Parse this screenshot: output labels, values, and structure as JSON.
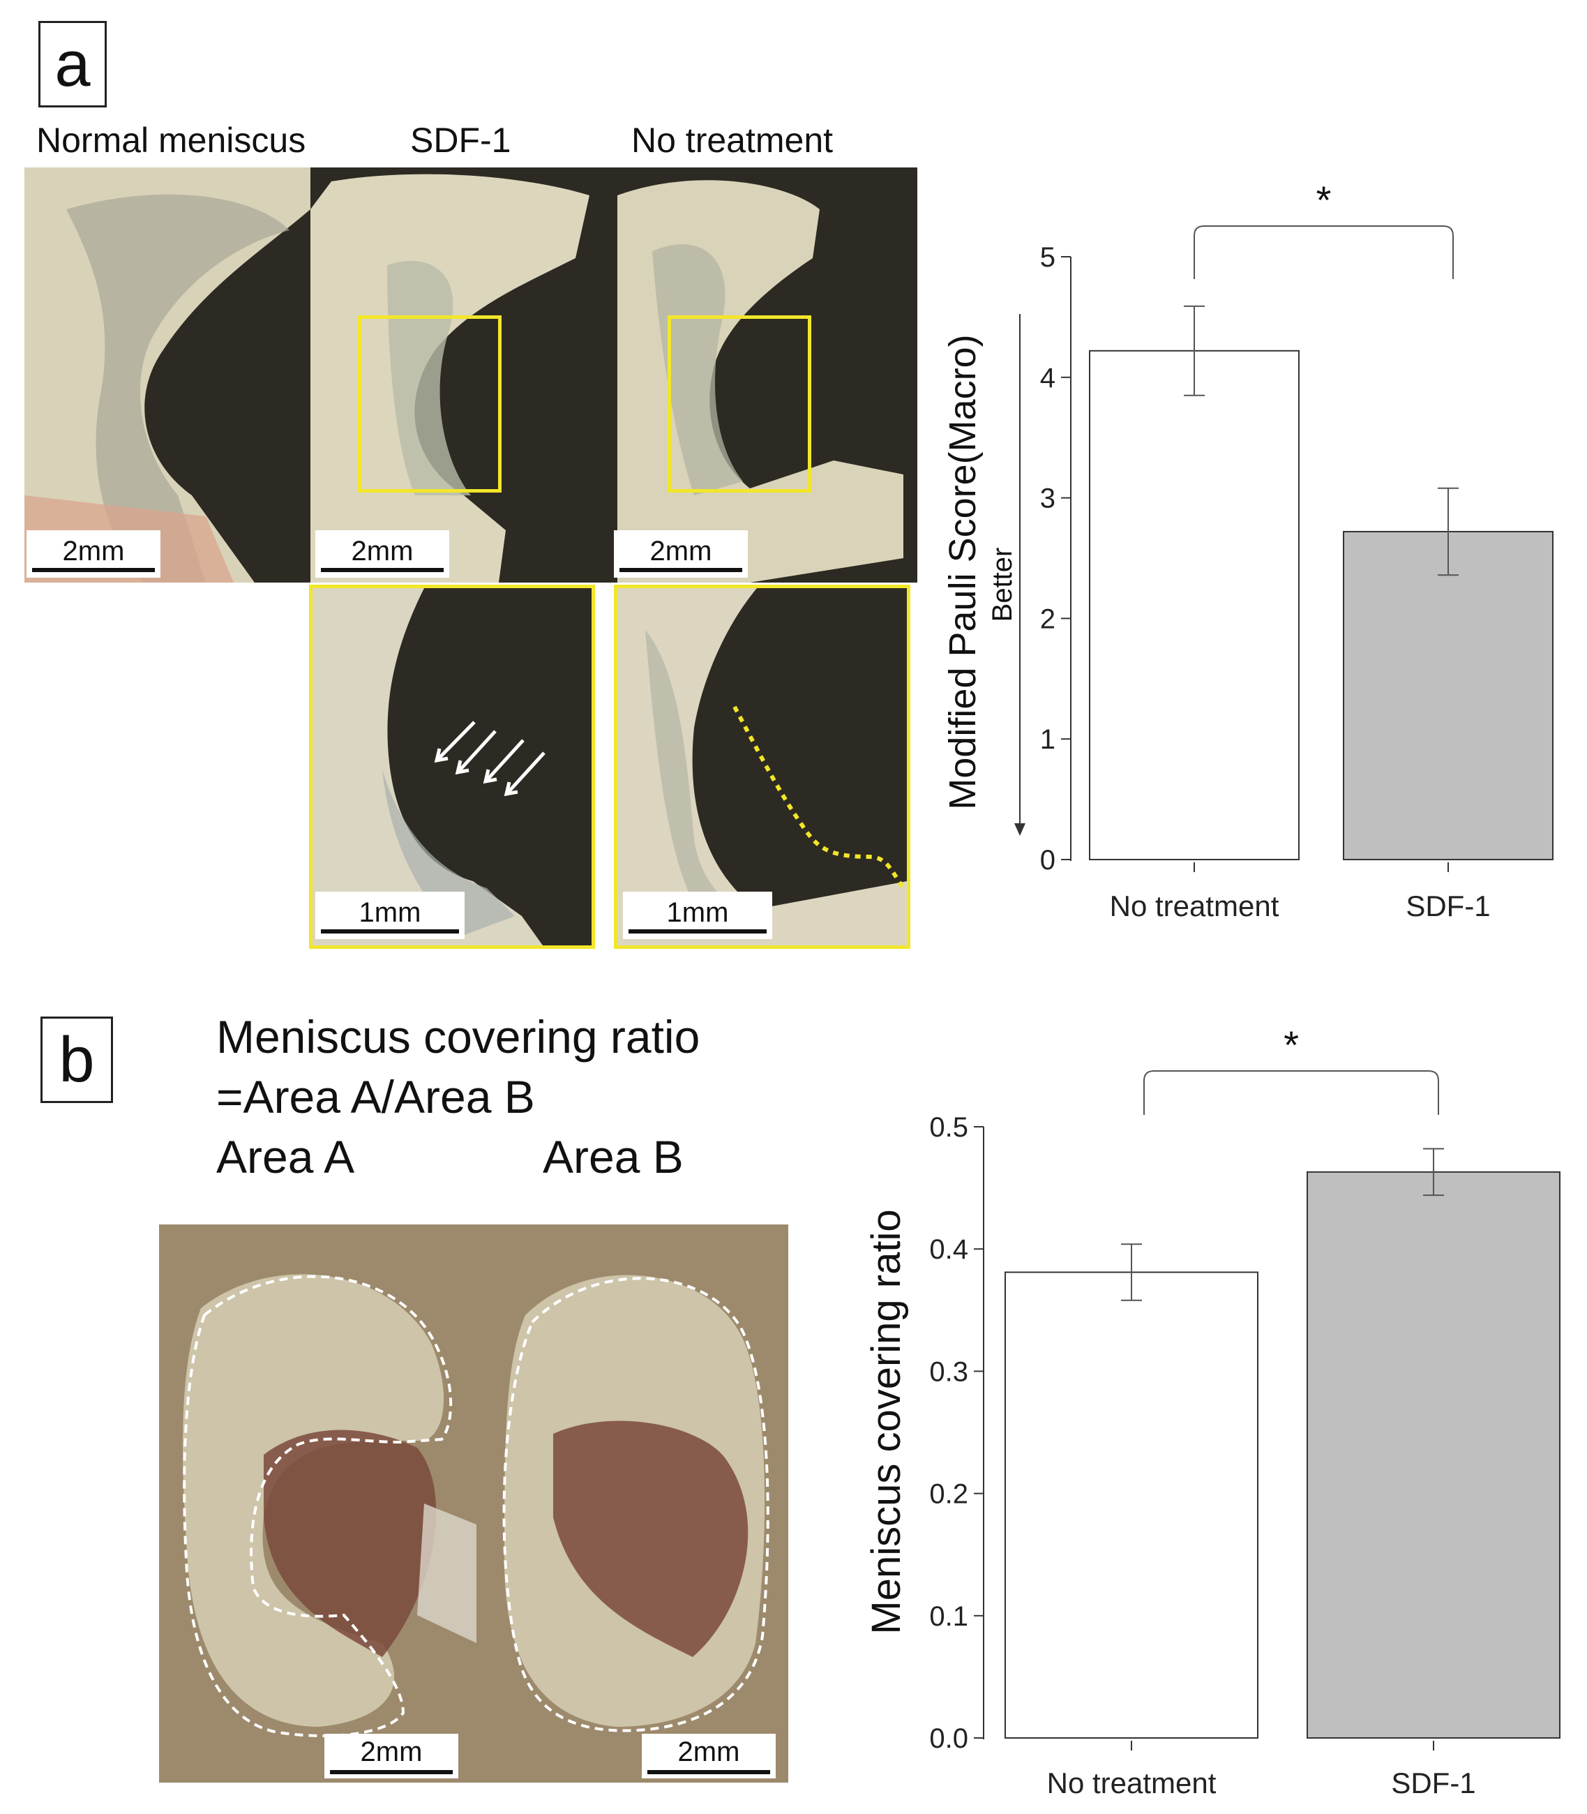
{
  "panel_a": {
    "letter": "a",
    "photo_labels": [
      "Normal meniscus",
      "SDF-1",
      "No treatment"
    ],
    "scale_top": "2mm",
    "scale_zoom": "1mm",
    "chart_better": "Better"
  },
  "panel_b": {
    "letter": "b",
    "formula_line1": "Meniscus covering ratio",
    "formula_line2": "=Area A/Area B",
    "area_a": "Area A",
    "area_b": "Area B",
    "scale": "2mm"
  },
  "colors": {
    "bar_no_treatment": "#ffffff",
    "bar_sdf1": "#bfbfbf",
    "highlight_box": "#f2e62a"
  },
  "chart_data": [
    {
      "type": "bar",
      "categories": [
        "No treatment",
        "SDF-1"
      ],
      "values": [
        4.22,
        2.72
      ],
      "errors": [
        0.37,
        0.36
      ],
      "ylabel": "Modified Pauli Score(Macro)",
      "ylim": [
        0,
        5
      ],
      "yticks": [
        "0",
        "1",
        "2",
        "3",
        "4",
        "5"
      ],
      "significance": "*"
    },
    {
      "type": "bar",
      "categories": [
        "No treatment",
        "SDF-1"
      ],
      "values": [
        0.381,
        0.463
      ],
      "errors": [
        0.023,
        0.019
      ],
      "ylabel": "Meniscus covering ratio",
      "ylim": [
        0,
        0.5
      ],
      "yticks": [
        "0.0",
        "0.1",
        "0.2",
        "0.3",
        "0.4",
        "0.5"
      ],
      "significance": "*"
    }
  ]
}
